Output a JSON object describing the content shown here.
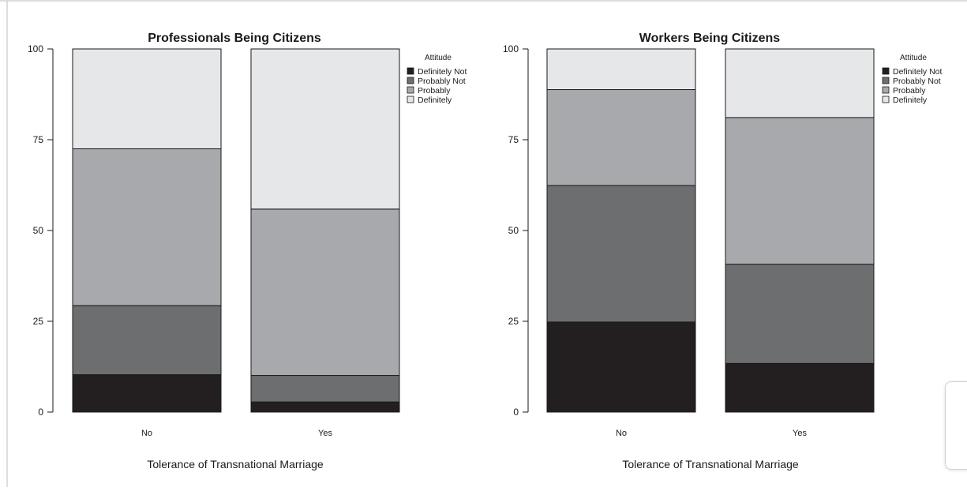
{
  "chart_data": [
    {
      "type": "bar",
      "stacked": true,
      "title": "Professionals Being Citizens",
      "xlabel": "Tolerance of Transnational Marriage",
      "ylabel": "",
      "ylim": [
        0,
        100
      ],
      "yticks": [
        "0",
        "25",
        "50",
        "75",
        "100"
      ],
      "categories": [
        "No",
        "Yes"
      ],
      "legend_title": "Attitude",
      "legend_position": "top-right",
      "grid": false,
      "series": [
        {
          "name": "Definitely Not",
          "color": "#231f20",
          "values": [
            10.3,
            2.8
          ]
        },
        {
          "name": "Probably Not",
          "color": "#6d6e70",
          "values": [
            19.0,
            7.3
          ]
        },
        {
          "name": "Probably",
          "color": "#a7a9ac",
          "values": [
            43.2,
            45.8
          ]
        },
        {
          "name": "Definitely",
          "color": "#e6e7e8",
          "values": [
            27.5,
            44.1
          ]
        }
      ]
    },
    {
      "type": "bar",
      "stacked": true,
      "title": "Workers Being Citizens",
      "xlabel": "Tolerance of Transnational Marriage",
      "ylabel": "",
      "ylim": [
        0,
        100
      ],
      "yticks": [
        "0",
        "25",
        "50",
        "75",
        "100"
      ],
      "categories": [
        "No",
        "Yes"
      ],
      "legend_title": "Attitude",
      "legend_position": "top-right",
      "grid": false,
      "series": [
        {
          "name": "Definitely Not",
          "color": "#231f20",
          "values": [
            24.8,
            13.4
          ]
        },
        {
          "name": "Probably Not",
          "color": "#6d6e70",
          "values": [
            37.6,
            27.3
          ]
        },
        {
          "name": "Probably",
          "color": "#a7a9ac",
          "values": [
            26.4,
            40.4
          ]
        },
        {
          "name": "Definitely",
          "color": "#e6e7e8",
          "values": [
            11.2,
            18.9
          ]
        }
      ]
    }
  ]
}
